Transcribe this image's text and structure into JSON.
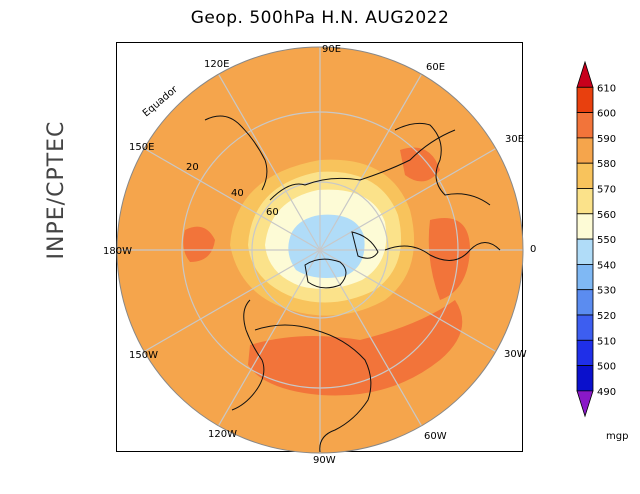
{
  "title": "Geop. 500hPa H.N. AUG2022",
  "side_credit": "INPE/CPTEC",
  "longitude_labels": {
    "lon_0": "0",
    "lon_30e": "30E",
    "lon_60e": "60E",
    "lon_90e": "90E",
    "lon_120e": "120E",
    "lon_150e": "150E",
    "lon_180w": "180W",
    "lon_150w": "150W",
    "lon_120w": "120W",
    "lon_90w": "90W",
    "lon_60w": "60W",
    "lon_30w": "30W"
  },
  "latitude_labels": {
    "equator": "Equador",
    "lat_20": "20",
    "lat_40": "40",
    "lat_60": "60"
  },
  "colorbar": {
    "unit": "mgp",
    "levels": [
      "610",
      "600",
      "590",
      "580",
      "570",
      "560",
      "550",
      "540",
      "530",
      "520",
      "510",
      "500",
      "490"
    ],
    "colors": [
      "#c8001c",
      "#e8400e",
      "#f2743a",
      "#f5a54c",
      "#f8c35c",
      "#fbe28a",
      "#fdfbd6",
      "#b0dcf8",
      "#7fb8f4",
      "#5b8cf0",
      "#3d5ef0",
      "#1f2fe8",
      "#0a10cc",
      "#8a18c8"
    ]
  },
  "field_colors": {
    "ocean_base": "#f5a54c",
    "ring_590": "#f2743a",
    "ring_570": "#f8c35c",
    "ring_560": "#fbe28a",
    "ring_550": "#fdfbd6",
    "polar_540": "#b0dcf8",
    "grid": "#c8c8c8",
    "coast": "#111111"
  }
}
